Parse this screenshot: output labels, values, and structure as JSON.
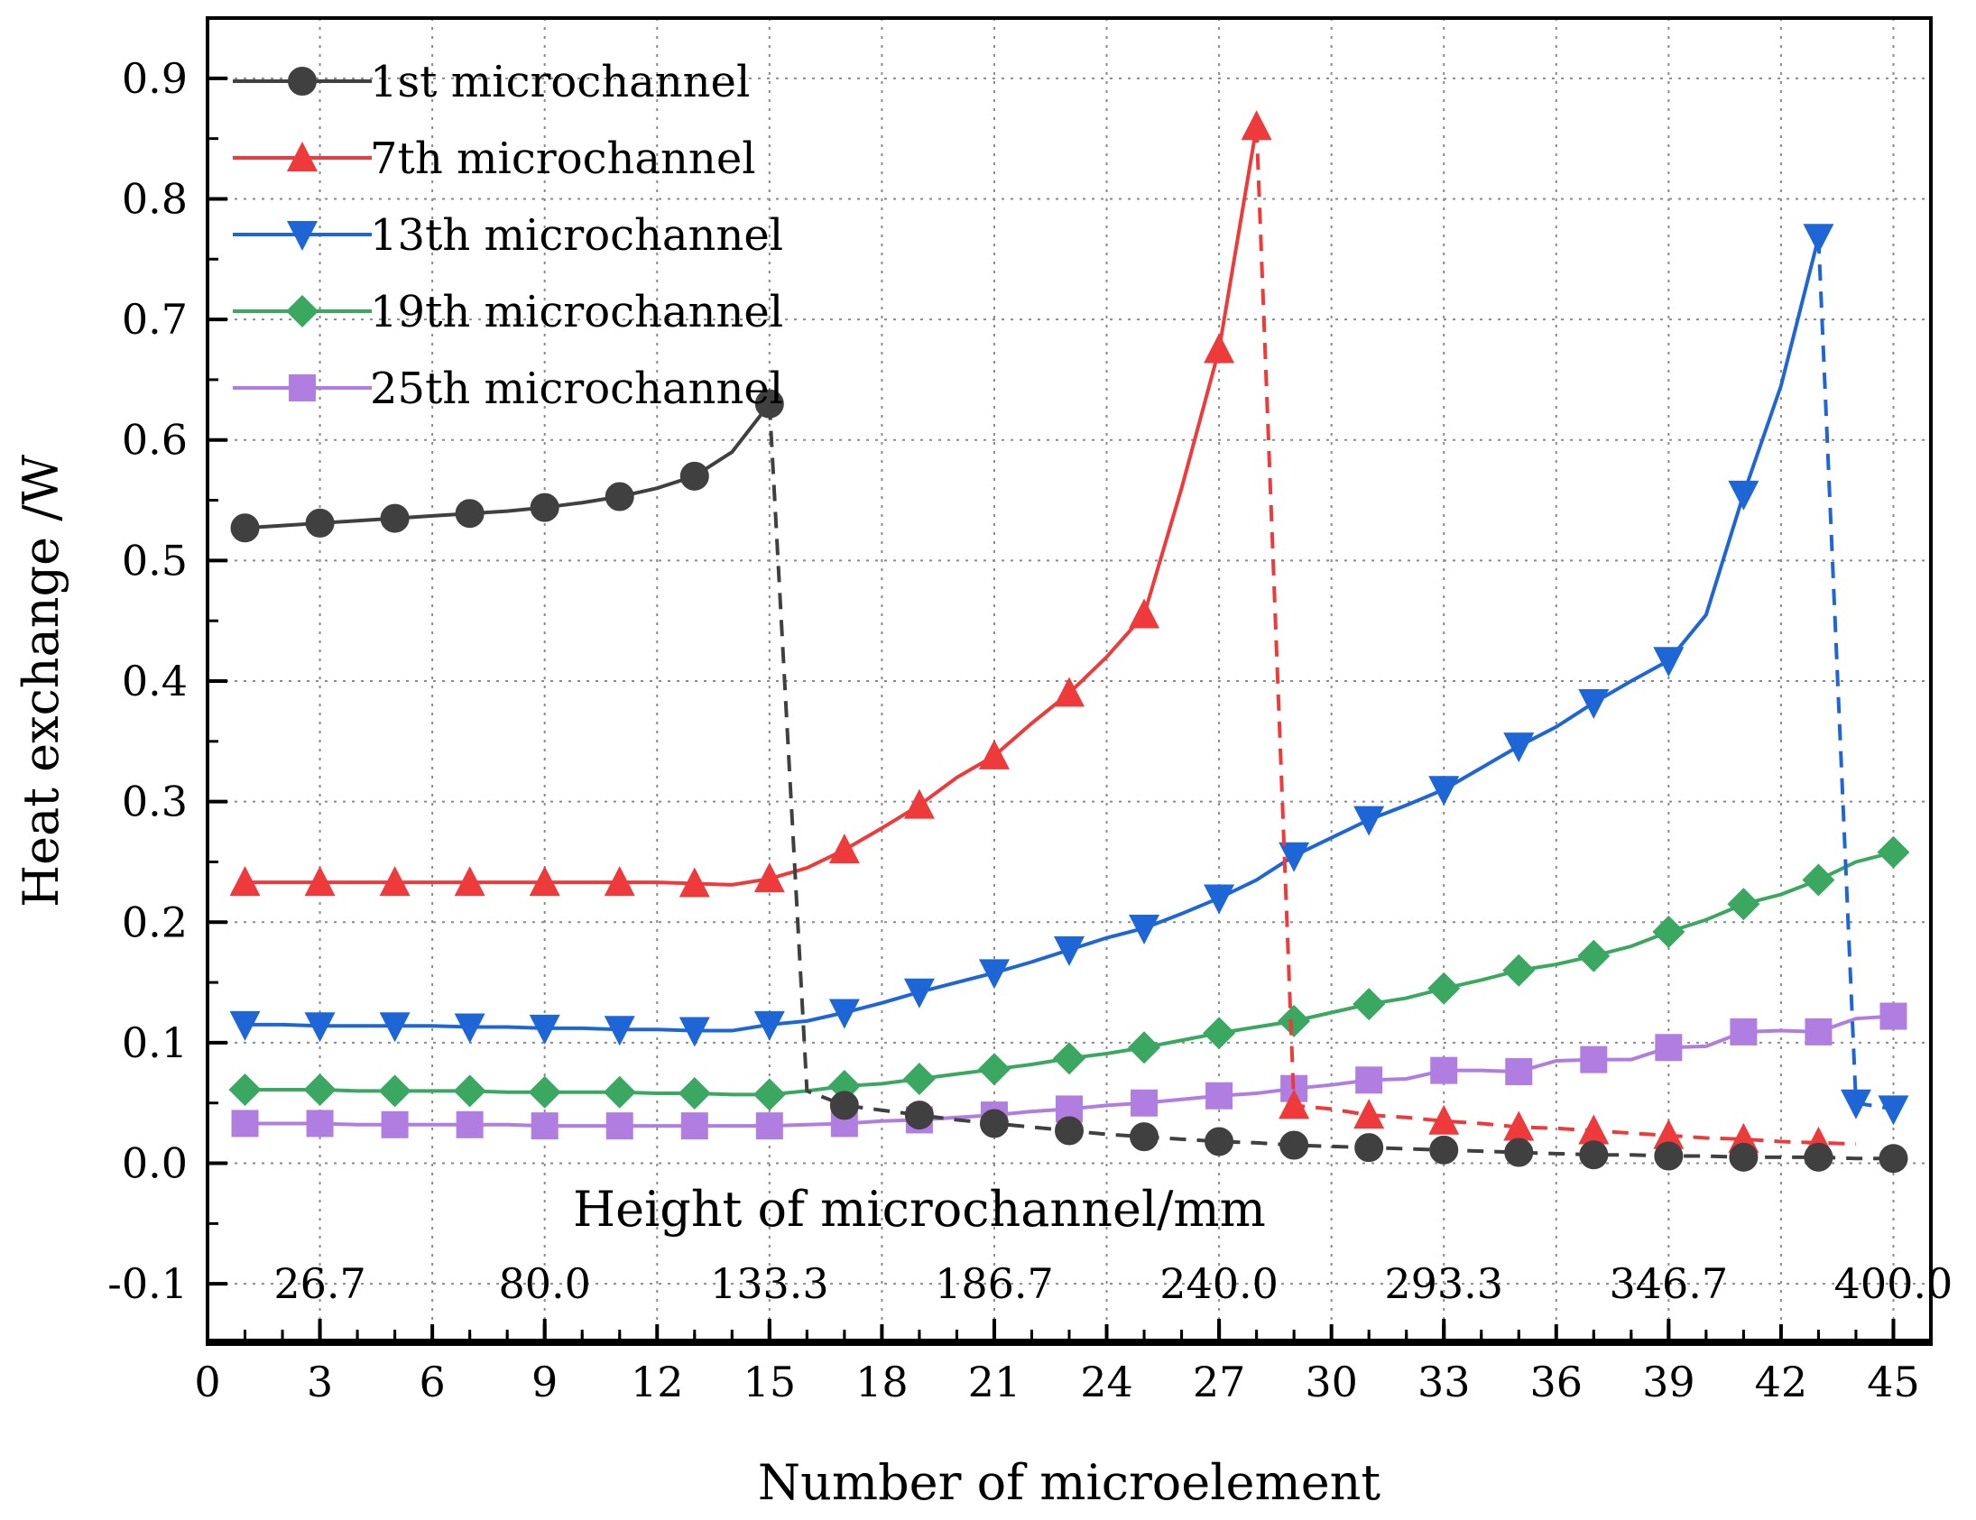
{
  "chart_data": {
    "type": "line",
    "title": "",
    "xlabel": "Number of microelement",
    "ylabel": "Heat exchange /W",
    "secondary_xlabel": "Height of microchannel/mm",
    "xlim": [
      0,
      46
    ],
    "ylim": [
      -0.15,
      0.95
    ],
    "x_ticks": [
      0,
      3,
      6,
      9,
      12,
      15,
      18,
      21,
      24,
      27,
      30,
      33,
      36,
      39,
      42,
      45
    ],
    "x_tick_labels": [
      "0",
      "3",
      "6",
      "9",
      "12",
      "15",
      "18",
      "21",
      "24",
      "27",
      "30",
      "33",
      "36",
      "39",
      "42",
      "45"
    ],
    "y_ticks": [
      -0.1,
      0.0,
      0.1,
      0.2,
      0.3,
      0.4,
      0.5,
      0.6,
      0.7,
      0.8,
      0.9
    ],
    "y_tick_labels": [
      "-0.1",
      "0.0",
      "0.1",
      "0.2",
      "0.3",
      "0.4",
      "0.5",
      "0.6",
      "0.7",
      "0.8",
      "0.9"
    ],
    "height_ticks": [
      {
        "x": 3,
        "label": "26.7"
      },
      {
        "x": 9,
        "label": "80.0"
      },
      {
        "x": 15,
        "label": "133.3"
      },
      {
        "x": 21,
        "label": "186.7"
      },
      {
        "x": 27,
        "label": "240.0"
      },
      {
        "x": 33,
        "label": "293.3"
      },
      {
        "x": 39,
        "label": "346.7"
      },
      {
        "x": 45,
        "label": "400.0"
      }
    ],
    "grid": true,
    "legend_position": "top-left",
    "series": [
      {
        "name": "1st  microchannel",
        "color": "#404040",
        "marker": "circle",
        "solid_x": [
          1,
          2,
          3,
          4,
          5,
          6,
          7,
          8,
          9,
          10,
          11,
          12,
          13,
          14,
          15
        ],
        "solid_y": [
          0.527,
          0.529,
          0.531,
          0.533,
          0.535,
          0.537,
          0.539,
          0.541,
          0.544,
          0.548,
          0.553,
          0.56,
          0.57,
          0.59,
          0.63
        ],
        "dashed_x": [
          15,
          16,
          17,
          18,
          19,
          20,
          21,
          22,
          23,
          24,
          25,
          26,
          27,
          28,
          29,
          30,
          31,
          32,
          33,
          34,
          35,
          36,
          37,
          38,
          39,
          40,
          41,
          42,
          43,
          44,
          45
        ],
        "dashed_y": [
          0.63,
          0.06,
          0.048,
          0.044,
          0.04,
          0.036,
          0.033,
          0.03,
          0.027,
          0.024,
          0.022,
          0.02,
          0.018,
          0.017,
          0.015,
          0.014,
          0.013,
          0.012,
          0.011,
          0.01,
          0.009,
          0.008,
          0.007,
          0.007,
          0.006,
          0.006,
          0.005,
          0.005,
          0.005,
          0.004,
          0.004
        ]
      },
      {
        "name": "7th  microchannel",
        "color": "#ee3a3a",
        "marker": "triangle-up",
        "solid_x": [
          1,
          2,
          3,
          4,
          5,
          6,
          7,
          8,
          9,
          10,
          11,
          12,
          13,
          14,
          15,
          16,
          17,
          18,
          19,
          20,
          21,
          22,
          23,
          24,
          25,
          26,
          27,
          28
        ],
        "solid_y": [
          0.233,
          0.233,
          0.233,
          0.233,
          0.233,
          0.233,
          0.233,
          0.233,
          0.233,
          0.233,
          0.233,
          0.233,
          0.232,
          0.231,
          0.236,
          0.245,
          0.26,
          0.278,
          0.297,
          0.32,
          0.338,
          0.365,
          0.39,
          0.42,
          0.455,
          0.56,
          0.675,
          0.86
        ],
        "dashed_x": [
          28,
          29,
          30,
          31,
          32,
          33,
          34,
          35,
          36,
          37,
          38,
          39,
          40,
          41,
          42,
          43,
          44
        ],
        "dashed_y": [
          0.86,
          0.048,
          0.045,
          0.04,
          0.038,
          0.035,
          0.033,
          0.03,
          0.029,
          0.027,
          0.025,
          0.023,
          0.021,
          0.02,
          0.018,
          0.017,
          0.016
        ]
      },
      {
        "name": "13th microchannel",
        "color": "#1e66d6",
        "marker": "triangle-down",
        "solid_x": [
          1,
          2,
          3,
          4,
          5,
          6,
          7,
          8,
          9,
          10,
          11,
          12,
          13,
          14,
          15,
          16,
          17,
          18,
          19,
          20,
          21,
          22,
          23,
          24,
          25,
          26,
          27,
          28,
          29,
          30,
          31,
          32,
          33,
          34,
          35,
          36,
          37,
          38,
          39,
          40,
          41,
          42,
          43
        ],
        "solid_y": [
          0.115,
          0.115,
          0.114,
          0.114,
          0.114,
          0.114,
          0.113,
          0.113,
          0.112,
          0.112,
          0.111,
          0.111,
          0.11,
          0.11,
          0.115,
          0.118,
          0.125,
          0.133,
          0.142,
          0.15,
          0.158,
          0.167,
          0.177,
          0.187,
          0.195,
          0.207,
          0.22,
          0.235,
          0.255,
          0.27,
          0.285,
          0.297,
          0.31,
          0.328,
          0.346,
          0.362,
          0.382,
          0.4,
          0.417,
          0.455,
          0.555,
          0.645,
          0.768
        ],
        "dashed_x": [
          43,
          44,
          45
        ],
        "dashed_y": [
          0.768,
          0.05,
          0.045
        ]
      },
      {
        "name": "19th microchannel",
        "color": "#3aa860",
        "marker": "diamond",
        "solid_x": [
          1,
          2,
          3,
          4,
          5,
          6,
          7,
          8,
          9,
          10,
          11,
          12,
          13,
          14,
          15,
          16,
          17,
          18,
          19,
          20,
          21,
          22,
          23,
          24,
          25,
          26,
          27,
          28,
          29,
          30,
          31,
          32,
          33,
          34,
          35,
          36,
          37,
          38,
          39,
          40,
          41,
          42,
          43,
          44,
          45
        ],
        "solid_y": [
          0.061,
          0.061,
          0.061,
          0.06,
          0.06,
          0.06,
          0.06,
          0.059,
          0.059,
          0.059,
          0.059,
          0.058,
          0.058,
          0.057,
          0.057,
          0.06,
          0.064,
          0.066,
          0.07,
          0.074,
          0.078,
          0.082,
          0.087,
          0.091,
          0.096,
          0.102,
          0.108,
          0.113,
          0.118,
          0.125,
          0.132,
          0.137,
          0.145,
          0.152,
          0.16,
          0.165,
          0.172,
          0.18,
          0.192,
          0.202,
          0.215,
          0.223,
          0.235,
          0.25,
          0.258
        ]
      },
      {
        "name": "25th microchannel",
        "color": "#b07ee0",
        "marker": "square",
        "solid_x": [
          1,
          2,
          3,
          4,
          5,
          6,
          7,
          8,
          9,
          10,
          11,
          12,
          13,
          14,
          15,
          16,
          17,
          18,
          19,
          20,
          21,
          22,
          23,
          24,
          25,
          26,
          27,
          28,
          29,
          30,
          31,
          32,
          33,
          34,
          35,
          36,
          37,
          38,
          39,
          40,
          41,
          42,
          43,
          44,
          45
        ],
        "solid_y": [
          0.033,
          0.033,
          0.033,
          0.032,
          0.032,
          0.032,
          0.032,
          0.032,
          0.031,
          0.031,
          0.031,
          0.031,
          0.031,
          0.031,
          0.031,
          0.032,
          0.033,
          0.035,
          0.036,
          0.038,
          0.04,
          0.043,
          0.045,
          0.048,
          0.05,
          0.053,
          0.056,
          0.058,
          0.062,
          0.065,
          0.069,
          0.07,
          0.077,
          0.077,
          0.076,
          0.085,
          0.086,
          0.086,
          0.096,
          0.097,
          0.109,
          0.11,
          0.109,
          0.12,
          0.122
        ]
      }
    ]
  }
}
